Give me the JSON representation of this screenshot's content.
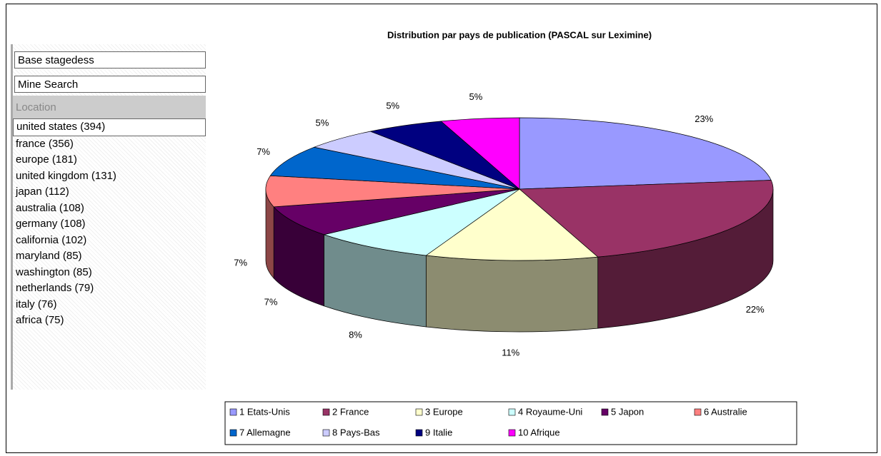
{
  "sidebar": {
    "fields": [
      "Base stagedess",
      "Mine Search"
    ],
    "section": "Location",
    "items": [
      "united states (394)",
      "france (356)",
      "europe (181)",
      "united kingdom (131)",
      "japan (112)",
      "australia (108)",
      "germany (108)",
      "california (102)",
      "maryland (85)",
      "washington (85)",
      "netherlands (79)",
      "italy (76)",
      "africa (75)"
    ]
  },
  "chart_data": {
    "type": "pie",
    "title": "Distribution par pays de publication (PASCAL sur Leximine)",
    "categories": [
      "1 Etats-Unis",
      "2 France",
      "3 Europe",
      "4 Royaume-Uni",
      "5 Japon",
      "6 Australie",
      "7 Allemagne",
      "8 Pays-Bas",
      "9 Italie",
      "10 Afrique"
    ],
    "values": [
      23,
      22,
      11,
      8,
      7,
      7,
      7,
      5,
      5,
      5
    ],
    "value_labels": [
      "23%",
      "22%",
      "11%",
      "8%",
      "7%",
      "7%",
      "7%",
      "5%",
      "5%",
      "5%"
    ],
    "colors": [
      "#9999ff",
      "#993366",
      "#ffffcc",
      "#ccffff",
      "#660066",
      "#ff8080",
      "#0066cc",
      "#ccccff",
      "#000080",
      "#ff00ff"
    ],
    "legend": "bottom"
  }
}
